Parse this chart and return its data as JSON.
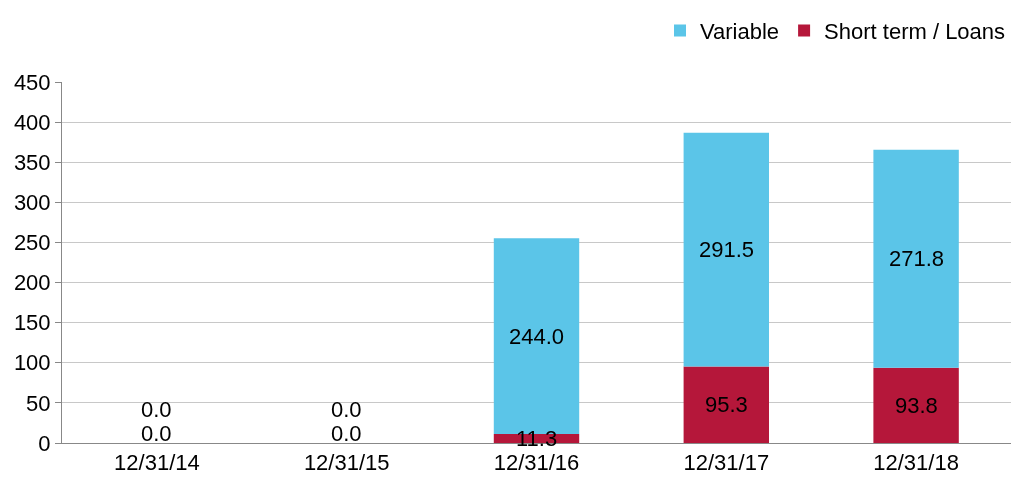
{
  "chart_data": {
    "type": "bar",
    "stacked": true,
    "categories": [
      "12/31/14",
      "12/31/15",
      "12/31/16",
      "12/31/17",
      "12/31/18"
    ],
    "series": [
      {
        "name": "Short term / Loans",
        "color": "#b5173a",
        "values": [
          0,
          0,
          11.3,
          95.3,
          93.8
        ],
        "value_labels": [
          "0.0",
          "0.0",
          "11.3",
          "95.3",
          "93.8"
        ]
      },
      {
        "name": "Variable",
        "color": "#5bc5e8",
        "values": [
          0,
          0,
          244.0,
          291.5,
          271.8
        ],
        "value_labels": [
          "0.0",
          "0.0",
          "244.0",
          "291.5",
          "271.8"
        ]
      }
    ],
    "ylim": [
      0,
      450
    ],
    "yticks": [
      0,
      50,
      100,
      150,
      200,
      250,
      300,
      350,
      400,
      450
    ],
    "grid": "y",
    "legend": "top right"
  }
}
